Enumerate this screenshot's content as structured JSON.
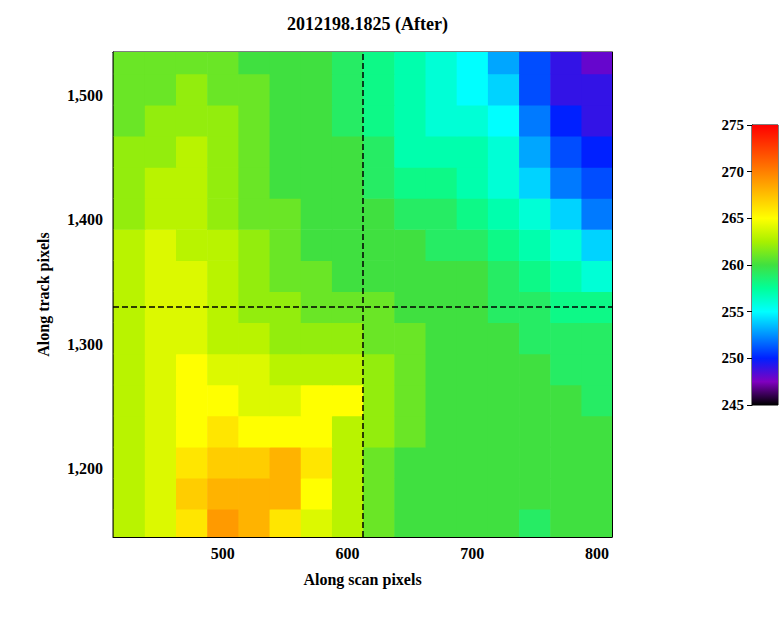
{
  "chart_data": {
    "type": "heatmap",
    "title": "2012198.1825 (After)",
    "x_label": "Along scan pixels",
    "y_label": "Along track pixels",
    "x": [
      425,
      450,
      475,
      500,
      525,
      550,
      575,
      600,
      625,
      650,
      675,
      700,
      725,
      750,
      775,
      800
    ],
    "y": [
      1155,
      1180,
      1205,
      1230,
      1255,
      1280,
      1305,
      1330,
      1355,
      1380,
      1405,
      1430,
      1455,
      1480,
      1505,
      1530
    ],
    "values": [
      [
        263,
        264,
        266,
        269,
        268,
        266,
        264,
        263,
        261,
        260,
        260,
        260,
        260,
        259,
        260,
        260
      ],
      [
        263,
        264,
        267,
        268,
        268,
        268,
        265,
        263,
        261,
        260,
        260,
        260,
        260,
        260,
        260,
        260
      ],
      [
        263,
        264,
        266,
        267,
        267,
        268,
        266,
        263,
        261,
        260,
        260,
        260,
        260,
        260,
        260,
        260
      ],
      [
        263,
        264,
        265,
        266,
        265,
        265,
        265,
        263,
        262,
        261,
        260,
        260,
        260,
        260,
        260,
        260
      ],
      [
        263,
        264,
        265,
        265,
        264,
        264,
        265,
        265,
        262,
        261,
        260,
        260,
        260,
        260,
        260,
        259
      ],
      [
        263,
        264,
        265,
        264,
        264,
        263,
        263,
        263,
        262,
        261,
        260,
        260,
        260,
        260,
        259,
        259
      ],
      [
        263,
        264,
        264,
        263,
        263,
        262,
        262,
        262,
        261,
        261,
        260,
        260,
        260,
        259,
        259,
        259
      ],
      [
        263,
        264,
        264,
        263,
        262,
        262,
        261,
        261,
        261,
        260,
        260,
        260,
        259,
        259,
        258,
        258
      ],
      [
        263,
        264,
        264,
        263,
        262,
        261,
        261,
        260,
        260,
        260,
        260,
        260,
        259,
        258,
        257,
        256
      ],
      [
        263,
        264,
        263,
        263,
        262,
        261,
        260,
        260,
        260,
        260,
        259,
        259,
        258,
        257,
        256,
        254
      ],
      [
        262,
        263,
        263,
        262,
        261,
        261,
        260,
        260,
        260,
        259,
        259,
        258,
        257,
        256,
        254,
        252
      ],
      [
        262,
        263,
        263,
        262,
        261,
        260,
        260,
        260,
        259,
        258,
        258,
        257,
        256,
        254,
        252,
        251
      ],
      [
        262,
        262,
        263,
        262,
        261,
        260,
        260,
        260,
        259,
        257,
        257,
        257,
        256,
        253,
        251,
        250
      ],
      [
        261,
        262,
        262,
        262,
        261,
        260,
        260,
        259,
        258,
        257,
        256,
        256,
        255,
        252,
        250,
        249
      ],
      [
        261,
        261,
        262,
        261,
        261,
        260,
        260,
        259,
        258,
        257,
        256,
        255,
        254,
        251,
        249,
        249
      ],
      [
        261,
        261,
        261,
        261,
        260,
        260,
        260,
        259,
        258,
        257,
        256,
        255,
        253,
        251,
        249,
        248
      ]
    ],
    "xlim": [
      412,
      812
    ],
    "ylim": [
      1145,
      1535
    ],
    "xticks": [
      500,
      600,
      700,
      800
    ],
    "yticks": [
      1200,
      1300,
      1400,
      1500
    ],
    "colorbar": {
      "range": [
        245,
        275
      ],
      "ticks": [
        245,
        250,
        255,
        260,
        265,
        270,
        275
      ]
    },
    "crosshair": {
      "x": 612,
      "y": 1330
    }
  }
}
